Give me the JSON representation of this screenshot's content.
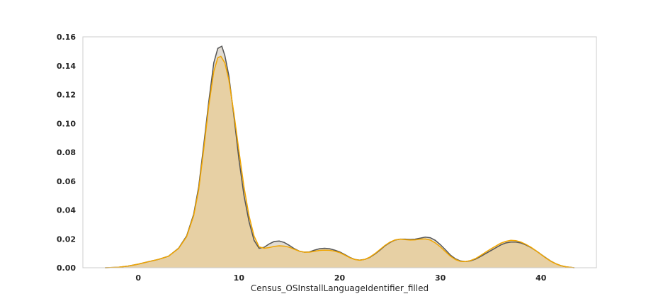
{
  "chart_data": {
    "type": "area",
    "title": "",
    "xlabel": "Census_OSInstallLanguageIdentifier_filled",
    "ylabel": "",
    "xlim": [
      -5.5,
      45.5
    ],
    "ylim": [
      0,
      0.16
    ],
    "x_ticks": [
      0,
      10,
      20,
      30,
      40
    ],
    "y_ticks": [
      0.0,
      0.02,
      0.04,
      0.06,
      0.08,
      0.1,
      0.12,
      0.14,
      0.16
    ],
    "y_tick_labels": [
      "0.00",
      "0.02",
      "0.04",
      "0.06",
      "0.08",
      "0.10",
      "0.12",
      "0.14",
      "0.16"
    ],
    "grid": false,
    "series": [
      {
        "color": "#555555",
        "fill": "#c8c0b0",
        "points": [
          [
            -3.3,
            0.0
          ],
          [
            -2,
            0.0003
          ],
          [
            -1,
            0.0012
          ],
          [
            0,
            0.0025
          ],
          [
            1,
            0.0042
          ],
          [
            2,
            0.0058
          ],
          [
            3,
            0.008
          ],
          [
            4,
            0.0135
          ],
          [
            4.8,
            0.022
          ],
          [
            5.5,
            0.037
          ],
          [
            6,
            0.056
          ],
          [
            6.5,
            0.085
          ],
          [
            7,
            0.115
          ],
          [
            7.5,
            0.142
          ],
          [
            7.9,
            0.152
          ],
          [
            8.3,
            0.1535
          ],
          [
            8.6,
            0.147
          ],
          [
            9,
            0.133
          ],
          [
            9.5,
            0.105
          ],
          [
            10,
            0.075
          ],
          [
            10.5,
            0.05
          ],
          [
            11,
            0.032
          ],
          [
            11.5,
            0.019
          ],
          [
            12,
            0.0135
          ],
          [
            12.5,
            0.0142
          ],
          [
            13,
            0.0165
          ],
          [
            13.5,
            0.0182
          ],
          [
            14,
            0.0185
          ],
          [
            14.5,
            0.0175
          ],
          [
            15,
            0.0155
          ],
          [
            15.5,
            0.0132
          ],
          [
            16,
            0.0115
          ],
          [
            16.5,
            0.0108
          ],
          [
            17,
            0.011
          ],
          [
            17.5,
            0.0122
          ],
          [
            18,
            0.0132
          ],
          [
            18.5,
            0.0135
          ],
          [
            19,
            0.0132
          ],
          [
            19.5,
            0.0122
          ],
          [
            20,
            0.011
          ],
          [
            20.5,
            0.0092
          ],
          [
            21,
            0.0072
          ],
          [
            21.5,
            0.0058
          ],
          [
            22,
            0.0053
          ],
          [
            22.5,
            0.0058
          ],
          [
            23,
            0.0072
          ],
          [
            23.5,
            0.0095
          ],
          [
            24,
            0.0122
          ],
          [
            24.5,
            0.0152
          ],
          [
            25,
            0.0175
          ],
          [
            25.5,
            0.0192
          ],
          [
            26,
            0.0198
          ],
          [
            26.5,
            0.0198
          ],
          [
            27,
            0.0196
          ],
          [
            27.5,
            0.0198
          ],
          [
            28,
            0.0205
          ],
          [
            28.5,
            0.0212
          ],
          [
            29,
            0.0208
          ],
          [
            29.5,
            0.019
          ],
          [
            30,
            0.016
          ],
          [
            30.5,
            0.0125
          ],
          [
            31,
            0.0088
          ],
          [
            31.5,
            0.0062
          ],
          [
            32,
            0.0047
          ],
          [
            32.5,
            0.0043
          ],
          [
            33,
            0.0048
          ],
          [
            33.5,
            0.006
          ],
          [
            34,
            0.0078
          ],
          [
            34.5,
            0.0098
          ],
          [
            35,
            0.0118
          ],
          [
            35.5,
            0.0138
          ],
          [
            36,
            0.0158
          ],
          [
            36.5,
            0.0172
          ],
          [
            37,
            0.0178
          ],
          [
            37.5,
            0.0178
          ],
          [
            38,
            0.0172
          ],
          [
            38.5,
            0.0158
          ],
          [
            39,
            0.014
          ],
          [
            39.5,
            0.0118
          ],
          [
            40,
            0.0093
          ],
          [
            40.5,
            0.0068
          ],
          [
            41,
            0.0045
          ],
          [
            41.5,
            0.0027
          ],
          [
            42,
            0.0014
          ],
          [
            42.5,
            0.0006
          ],
          [
            43.3,
            0.0
          ]
        ]
      },
      {
        "color": "#f0a500",
        "fill": "#e8cc94",
        "points": [
          [
            -3.3,
            0.0
          ],
          [
            -2,
            0.0003
          ],
          [
            -1,
            0.0012
          ],
          [
            0,
            0.0025
          ],
          [
            1,
            0.0042
          ],
          [
            2,
            0.0058
          ],
          [
            3,
            0.008
          ],
          [
            4,
            0.0133
          ],
          [
            4.8,
            0.0215
          ],
          [
            5.5,
            0.036
          ],
          [
            6,
            0.054
          ],
          [
            6.5,
            0.082
          ],
          [
            7,
            0.112
          ],
          [
            7.5,
            0.136
          ],
          [
            7.9,
            0.1455
          ],
          [
            8.2,
            0.1465
          ],
          [
            8.6,
            0.142
          ],
          [
            9,
            0.13
          ],
          [
            9.5,
            0.107
          ],
          [
            10,
            0.081
          ],
          [
            10.5,
            0.056
          ],
          [
            11,
            0.036
          ],
          [
            11.5,
            0.022
          ],
          [
            12,
            0.0145
          ],
          [
            12.5,
            0.0135
          ],
          [
            13,
            0.014
          ],
          [
            13.5,
            0.0148
          ],
          [
            14,
            0.0152
          ],
          [
            14.5,
            0.015
          ],
          [
            15,
            0.0142
          ],
          [
            15.5,
            0.0128
          ],
          [
            16,
            0.0115
          ],
          [
            16.5,
            0.0108
          ],
          [
            17,
            0.0108
          ],
          [
            17.5,
            0.0114
          ],
          [
            18,
            0.012
          ],
          [
            18.5,
            0.0122
          ],
          [
            19,
            0.0121
          ],
          [
            19.5,
            0.0115
          ],
          [
            20,
            0.0105
          ],
          [
            20.5,
            0.0088
          ],
          [
            21,
            0.007
          ],
          [
            21.5,
            0.0057
          ],
          [
            22,
            0.0052
          ],
          [
            22.5,
            0.0058
          ],
          [
            23,
            0.0074
          ],
          [
            23.5,
            0.0098
          ],
          [
            24,
            0.0126
          ],
          [
            24.5,
            0.0155
          ],
          [
            25,
            0.0178
          ],
          [
            25.5,
            0.0193
          ],
          [
            26,
            0.0198
          ],
          [
            26.5,
            0.0195
          ],
          [
            27,
            0.0192
          ],
          [
            27.5,
            0.0193
          ],
          [
            28,
            0.0198
          ],
          [
            28.5,
            0.02
          ],
          [
            29,
            0.0192
          ],
          [
            29.5,
            0.0172
          ],
          [
            30,
            0.0145
          ],
          [
            30.5,
            0.0112
          ],
          [
            31,
            0.008
          ],
          [
            31.5,
            0.0057
          ],
          [
            32,
            0.0044
          ],
          [
            32.5,
            0.0043
          ],
          [
            33,
            0.005
          ],
          [
            33.5,
            0.0064
          ],
          [
            34,
            0.0085
          ],
          [
            34.5,
            0.0108
          ],
          [
            35,
            0.013
          ],
          [
            35.5,
            0.015
          ],
          [
            36,
            0.017
          ],
          [
            36.5,
            0.0183
          ],
          [
            37,
            0.019
          ],
          [
            37.5,
            0.0188
          ],
          [
            38,
            0.0178
          ],
          [
            38.5,
            0.0162
          ],
          [
            39,
            0.0142
          ],
          [
            39.5,
            0.0118
          ],
          [
            40,
            0.0092
          ],
          [
            40.5,
            0.0066
          ],
          [
            41,
            0.0044
          ],
          [
            41.5,
            0.0027
          ],
          [
            42,
            0.0014
          ],
          [
            42.5,
            0.0006
          ],
          [
            43.3,
            0.0
          ]
        ]
      }
    ]
  }
}
